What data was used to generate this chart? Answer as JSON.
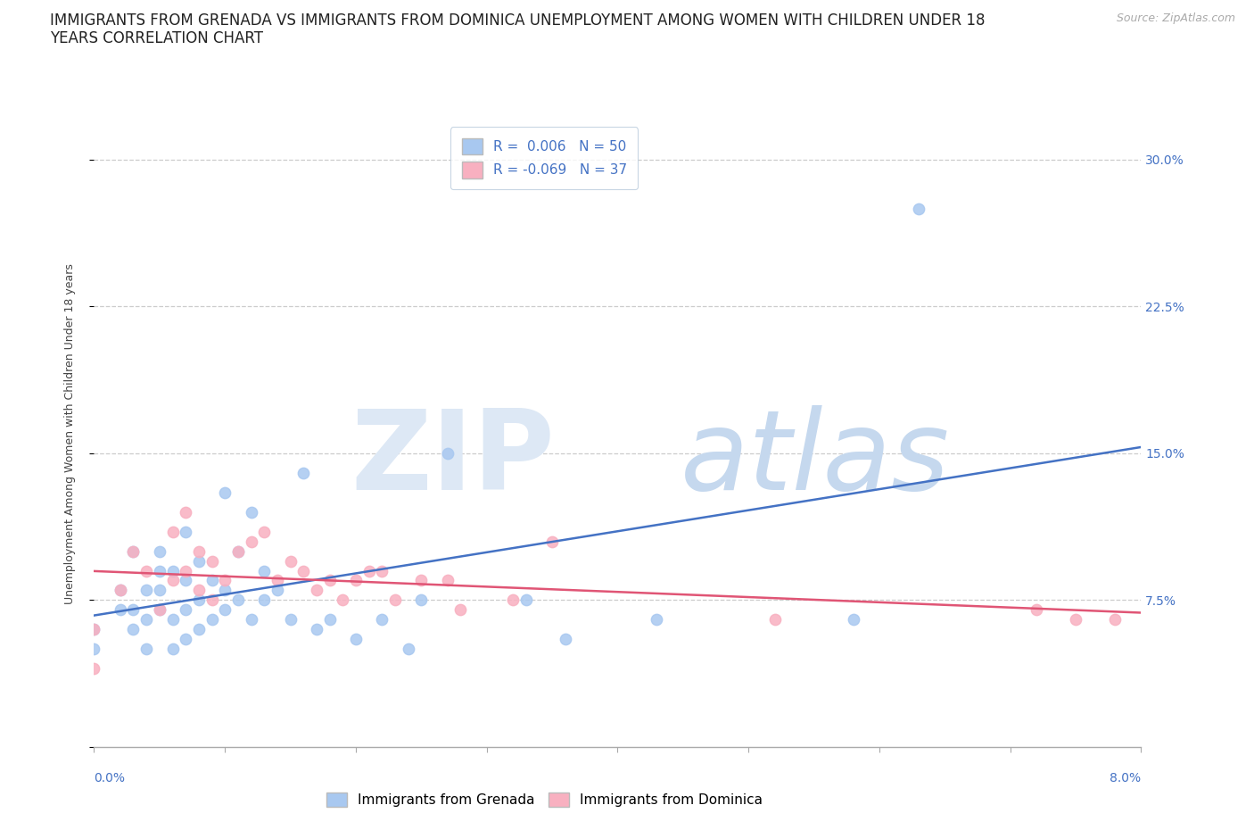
{
  "title_line1": "IMMIGRANTS FROM GRENADA VS IMMIGRANTS FROM DOMINICA UNEMPLOYMENT AMONG WOMEN WITH CHILDREN UNDER 18",
  "title_line2": "YEARS CORRELATION CHART",
  "source": "Source: ZipAtlas.com",
  "ylabel": "Unemployment Among Women with Children Under 18 years",
  "xlim": [
    0.0,
    0.08
  ],
  "ylim": [
    0.0,
    0.32
  ],
  "yticks": [
    0.0,
    0.075,
    0.15,
    0.225,
    0.3
  ],
  "ytick_labels": [
    "",
    "7.5%",
    "15.0%",
    "22.5%",
    "30.0%"
  ],
  "grenada_R": "0.006",
  "grenada_N": "50",
  "dominica_R": "-0.069",
  "dominica_N": "37",
  "grenada_color": "#A8C8F0",
  "dominica_color": "#F8B0C0",
  "trend_grenada_color": "#4472C4",
  "trend_dominica_color": "#E05575",
  "label_color": "#4472C4",
  "axis_color": "#AAAAAA",
  "grid_color": "#CCCCCC",
  "background_color": "#FFFFFF",
  "title_fontsize": 12,
  "ylabel_fontsize": 9,
  "tick_fontsize": 10,
  "legend_fontsize": 11,
  "source_fontsize": 9,
  "grenada_x": [
    0.0,
    0.0,
    0.002,
    0.002,
    0.003,
    0.003,
    0.003,
    0.004,
    0.004,
    0.004,
    0.005,
    0.005,
    0.005,
    0.005,
    0.006,
    0.006,
    0.006,
    0.007,
    0.007,
    0.007,
    0.007,
    0.008,
    0.008,
    0.008,
    0.009,
    0.009,
    0.01,
    0.01,
    0.01,
    0.011,
    0.011,
    0.012,
    0.012,
    0.013,
    0.013,
    0.014,
    0.015,
    0.016,
    0.017,
    0.018,
    0.02,
    0.022,
    0.024,
    0.025,
    0.027,
    0.033,
    0.036,
    0.043,
    0.058,
    0.063
  ],
  "grenada_y": [
    0.05,
    0.06,
    0.07,
    0.08,
    0.06,
    0.07,
    0.1,
    0.05,
    0.065,
    0.08,
    0.07,
    0.08,
    0.09,
    0.1,
    0.05,
    0.065,
    0.09,
    0.055,
    0.07,
    0.085,
    0.11,
    0.06,
    0.075,
    0.095,
    0.065,
    0.085,
    0.07,
    0.08,
    0.13,
    0.075,
    0.1,
    0.065,
    0.12,
    0.075,
    0.09,
    0.08,
    0.065,
    0.14,
    0.06,
    0.065,
    0.055,
    0.065,
    0.05,
    0.075,
    0.15,
    0.075,
    0.055,
    0.065,
    0.065,
    0.275
  ],
  "dominica_x": [
    0.0,
    0.0,
    0.002,
    0.003,
    0.004,
    0.005,
    0.006,
    0.006,
    0.007,
    0.007,
    0.008,
    0.008,
    0.009,
    0.009,
    0.01,
    0.011,
    0.012,
    0.013,
    0.014,
    0.015,
    0.016,
    0.017,
    0.018,
    0.019,
    0.02,
    0.021,
    0.022,
    0.023,
    0.025,
    0.027,
    0.028,
    0.032,
    0.035,
    0.052,
    0.072,
    0.075,
    0.078
  ],
  "dominica_y": [
    0.04,
    0.06,
    0.08,
    0.1,
    0.09,
    0.07,
    0.085,
    0.11,
    0.09,
    0.12,
    0.08,
    0.1,
    0.075,
    0.095,
    0.085,
    0.1,
    0.105,
    0.11,
    0.085,
    0.095,
    0.09,
    0.08,
    0.085,
    0.075,
    0.085,
    0.09,
    0.09,
    0.075,
    0.085,
    0.085,
    0.07,
    0.075,
    0.105,
    0.065,
    0.07,
    0.065,
    0.065
  ]
}
